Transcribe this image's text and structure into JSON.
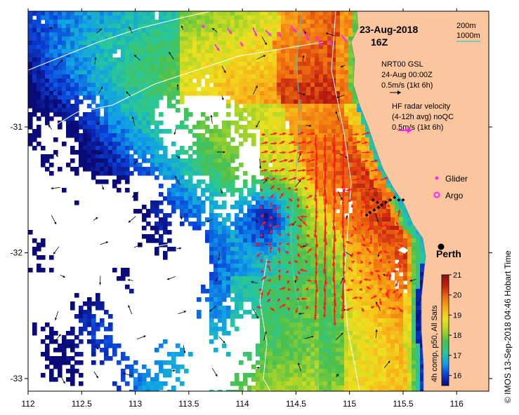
{
  "chart_data": {
    "type": "heatmap",
    "title": "23-Aug-2018",
    "subtitle": "16Z",
    "xlim": [
      112,
      116.3
    ],
    "ylim": [
      -33.1,
      -30.08
    ],
    "x_ticks": [
      112,
      112.5,
      113,
      113.5,
      114,
      114.5,
      115,
      115.5,
      116
    ],
    "x_tick_labels": [
      "112",
      "112.5",
      "113",
      "113.5",
      "114",
      "114.5",
      "115",
      "115.5",
      "116"
    ],
    "y_ticks": [
      -31,
      -32,
      -33
    ],
    "y_tick_labels": [
      "-31",
      "-32",
      "-33"
    ],
    "scale_labels": [
      "200m",
      "1000m"
    ],
    "legend": {
      "nrt": [
        "NRT00 GSL",
        "24-Aug 00:00Z",
        "0.5m/s (1kt 6h)"
      ],
      "hf": [
        "HF radar velocity",
        "(4-12h avg) noQC",
        "0.5m/s (1kt 6h)"
      ],
      "glider": "Glider",
      "argo": "Argo"
    },
    "place": {
      "name": "Perth",
      "lon": 115.86,
      "lat": -31.95
    },
    "colorbar": {
      "label": "4h comp, p50, All Sats",
      "min": 15.5,
      "max": 21,
      "ticks": [
        16,
        17,
        18,
        19,
        20,
        21
      ],
      "colors": [
        "#0a0a78",
        "#0c40d8",
        "#10a0e8",
        "#28c89a",
        "#4cc04c",
        "#a8d428",
        "#eee020",
        "#f8ac18",
        "#ee6c10",
        "#c02010",
        "#8a1010"
      ]
    },
    "credit": "© IMOS 13-Sep-2018 04:46 Hobart Time",
    "colors": {
      "land": "#fbc59e",
      "hf_vectors": "#ff1a1a",
      "glider": "#ff22ff",
      "nrt_vectors": "#000000",
      "isobath_200": "#ffffff",
      "isobath_1000": "#55c8b8"
    },
    "glider_track": [
      [
        115.22,
        -31.58
      ],
      [
        115.26,
        -31.6
      ],
      [
        115.3,
        -31.62
      ],
      [
        115.34,
        -31.6
      ],
      [
        115.38,
        -31.58
      ],
      [
        115.42,
        -31.56
      ],
      [
        115.46,
        -31.58
      ],
      [
        115.5,
        -31.58
      ],
      [
        115.16,
        -31.7
      ],
      [
        115.19,
        -31.68
      ],
      [
        115.23,
        -31.66
      ],
      [
        115.27,
        -31.64
      ]
    ]
  }
}
